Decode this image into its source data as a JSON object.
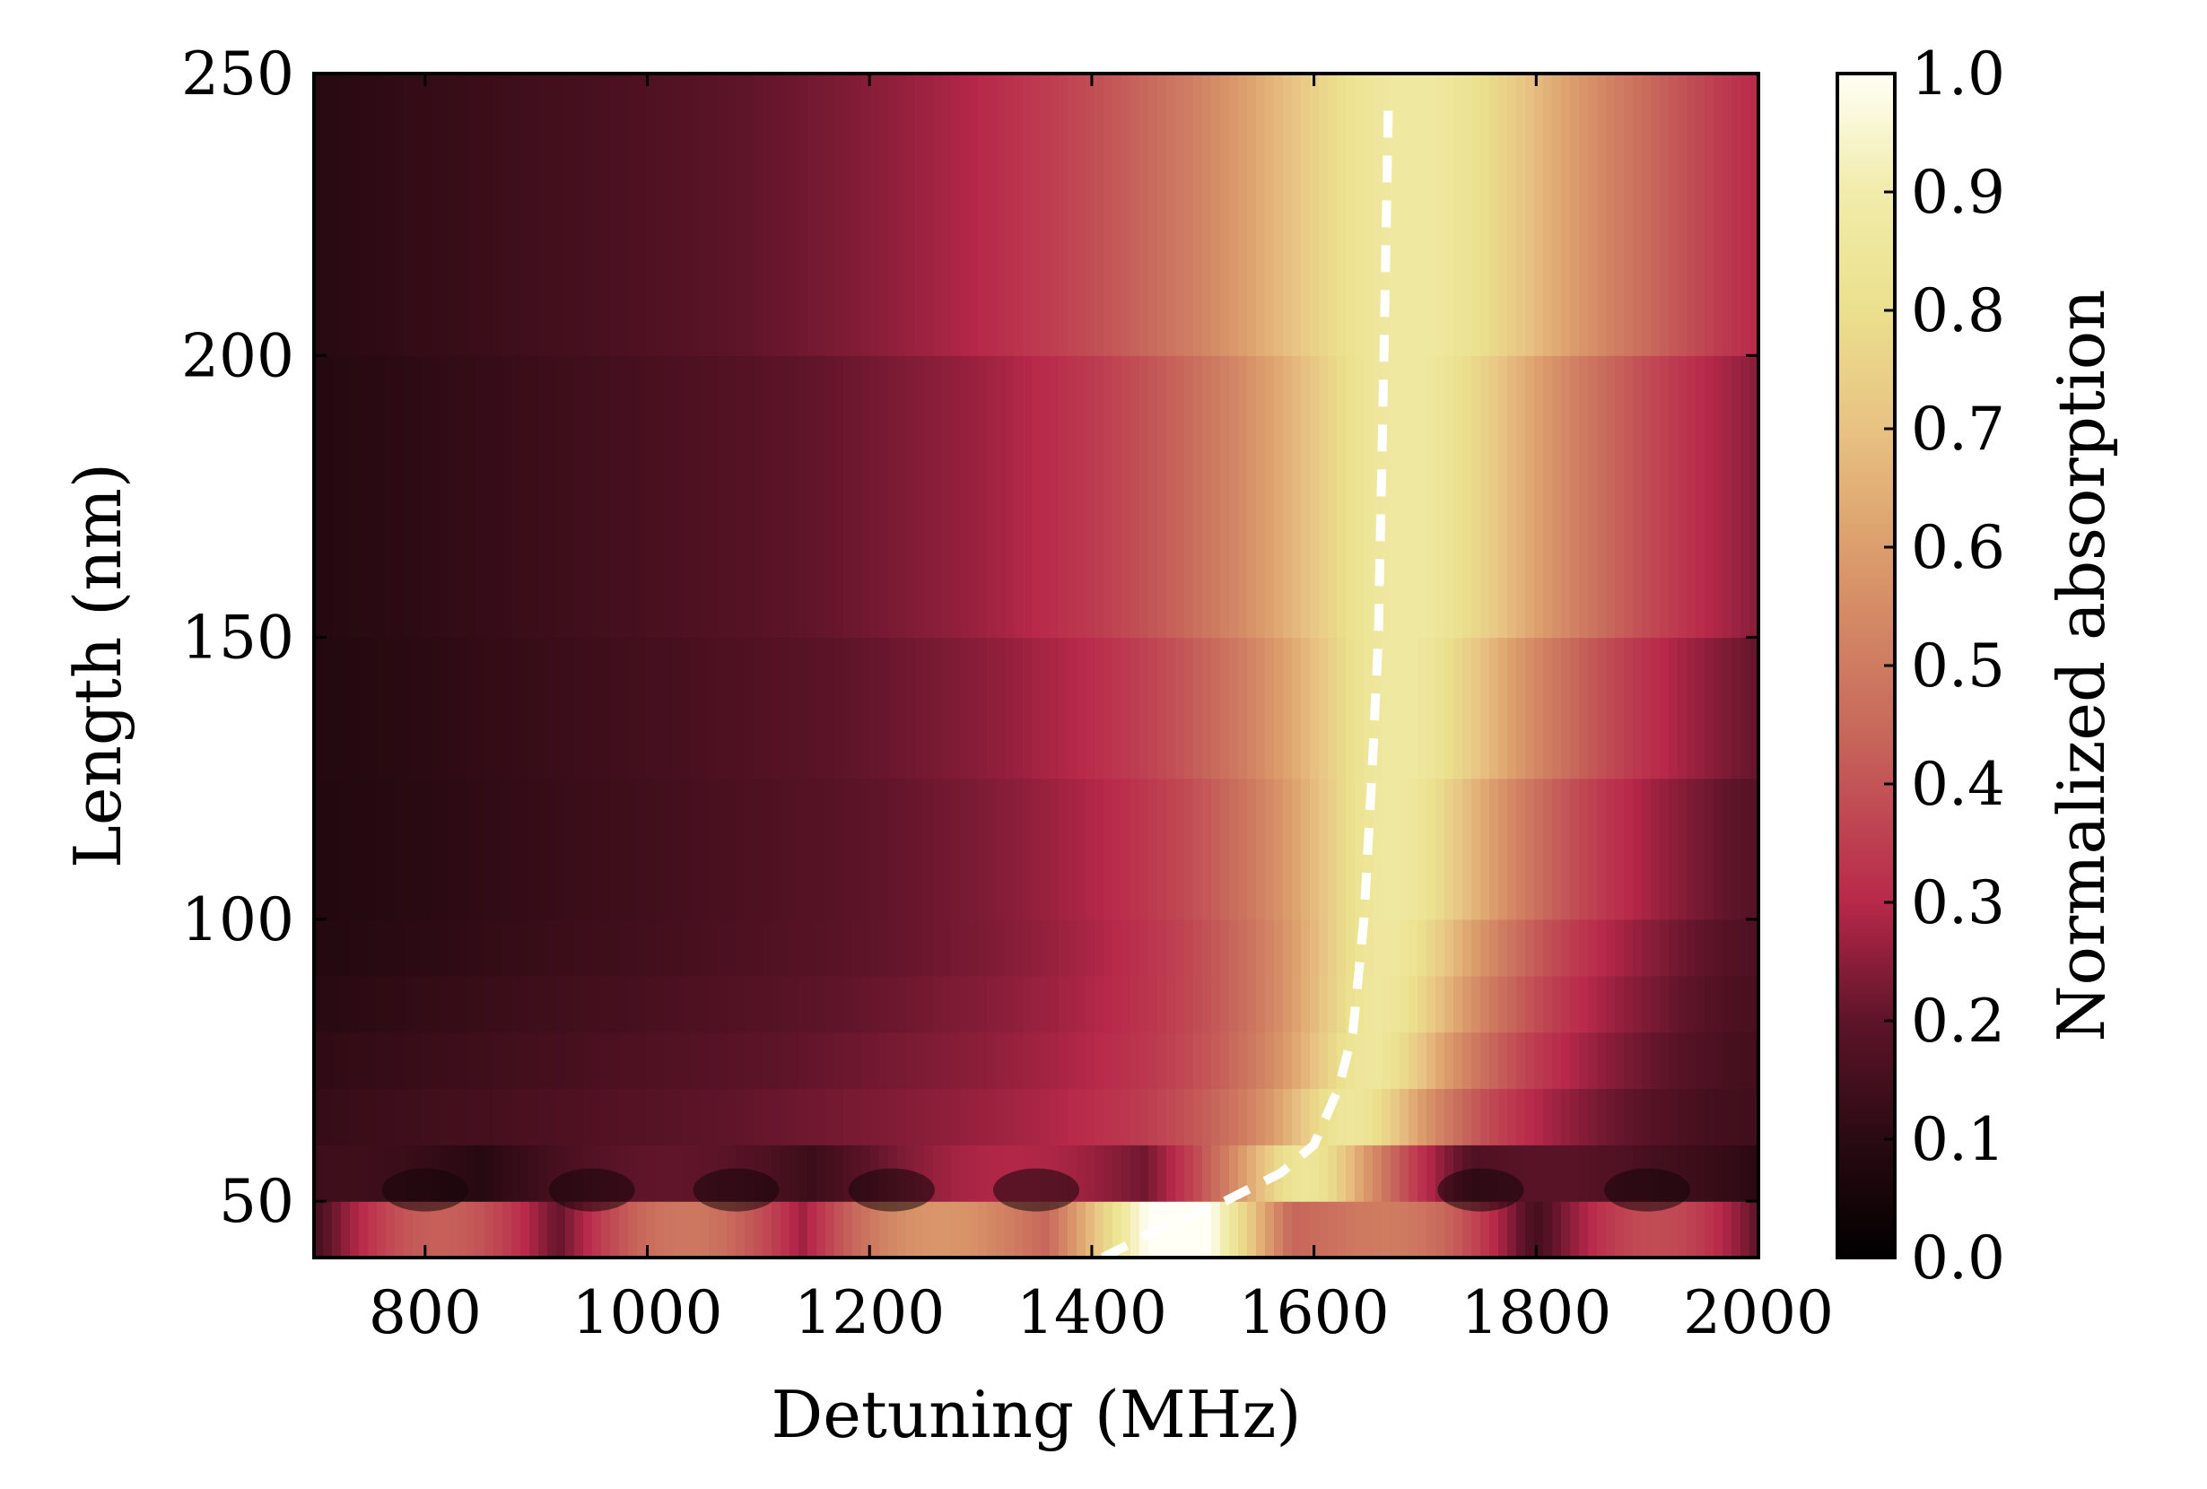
{
  "chart_data": {
    "type": "heatmap",
    "title": "",
    "xlabel": "Detuning (MHz)",
    "ylabel": "Length (nm)",
    "xlim": [
      700,
      2000
    ],
    "ylim": [
      40,
      250
    ],
    "xticks": [
      800,
      1000,
      1200,
      1400,
      1600,
      1800,
      2000
    ],
    "xtick_labels": [
      "800",
      "1000",
      "1200",
      "1400",
      "1600",
      "1800",
      "2000"
    ],
    "yticks": [
      50,
      100,
      150,
      200,
      250
    ],
    "ytick_labels": [
      "50",
      "100",
      "150",
      "200",
      "250"
    ],
    "colorbar": {
      "label": "Normalized absorption",
      "range": [
        0.0,
        1.0
      ],
      "ticks": [
        0.0,
        0.1,
        0.2,
        0.3,
        0.4,
        0.5,
        0.6,
        0.7,
        0.8,
        0.9,
        1.0
      ],
      "tick_labels": [
        "0.0",
        "0.1",
        "0.2",
        "0.3",
        "0.4",
        "0.5",
        "0.6",
        "0.7",
        "0.8",
        "0.9",
        "1.0"
      ],
      "colormap": [
        [
          0.0,
          "#000000"
        ],
        [
          0.1,
          "#2a0a12"
        ],
        [
          0.2,
          "#5e1429"
        ],
        [
          0.3,
          "#b8284a"
        ],
        [
          0.45,
          "#c86a5c"
        ],
        [
          0.6,
          "#dc9e6c"
        ],
        [
          0.7,
          "#e8c283"
        ],
        [
          0.8,
          "#ebe08d"
        ],
        [
          0.9,
          "#f1ecaa"
        ],
        [
          1.0,
          "#fffff5"
        ]
      ]
    },
    "length_rows": [
      40,
      50,
      60,
      70,
      80,
      90,
      100,
      125,
      150,
      200,
      250
    ],
    "resonance_curve": {
      "style": "dashed",
      "color": "#ffffff",
      "points": [
        [
          1410,
          40
        ],
        [
          1470,
          46
        ],
        [
          1520,
          50
        ],
        [
          1570,
          55
        ],
        [
          1600,
          60
        ],
        [
          1622,
          70
        ],
        [
          1635,
          80
        ],
        [
          1645,
          100
        ],
        [
          1652,
          125
        ],
        [
          1658,
          150
        ],
        [
          1663,
          200
        ],
        [
          1667,
          245
        ]
      ]
    },
    "lattice_dark_spots_x": [
      800,
      950,
      1080,
      1220,
      1350,
      1750,
      1900
    ]
  }
}
